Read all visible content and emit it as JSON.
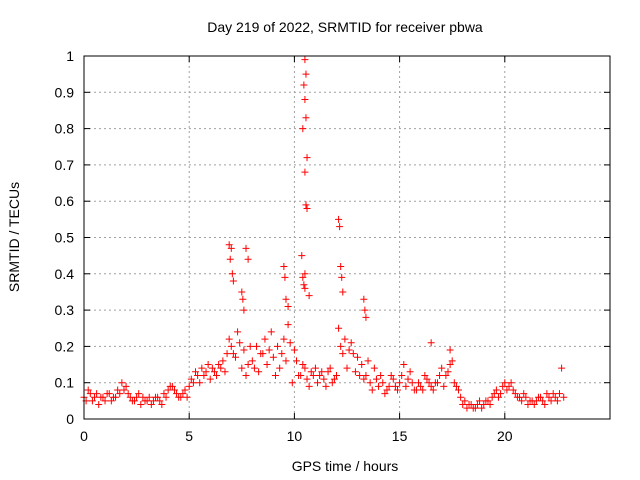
{
  "chart_data": {
    "type": "scatter",
    "title": "Day 219 of 2022, SRMTID for receiver pbwa",
    "xlabel": "GPS time / hours",
    "ylabel": "SRMTID / TECUs",
    "xlim": [
      0,
      25
    ],
    "ylim": [
      0,
      1
    ],
    "xticks": [
      0,
      5,
      10,
      15,
      20
    ],
    "xtick_labels": [
      "0",
      "5",
      "10",
      "15",
      "20"
    ],
    "yticks": [
      0,
      0.1,
      0.2,
      0.3,
      0.4,
      0.5,
      0.6,
      0.7,
      0.8,
      0.9,
      1
    ],
    "ytick_labels": [
      "0",
      "0.1",
      "0.2",
      "0.3",
      "0.4",
      "0.5",
      "0.6",
      "0.7",
      "0.8",
      "0.9",
      "1"
    ],
    "grid": true,
    "marker": "+",
    "marker_color": "#ff0000",
    "series": [
      {
        "name": "SRMTID",
        "x": [
          0.0,
          0.2,
          0.4,
          0.6,
          0.8,
          1.0,
          1.2,
          1.4,
          1.6,
          1.8,
          2.0,
          2.2,
          2.4,
          2.6,
          2.8,
          3.0,
          3.2,
          3.4,
          3.6,
          3.8,
          4.0,
          4.2,
          4.4,
          4.6,
          4.8,
          5.0,
          5.2,
          5.4,
          5.6,
          5.8,
          6.0,
          6.2,
          6.4,
          6.6,
          6.8,
          7.0,
          7.2,
          7.4,
          7.6,
          7.8,
          8.0,
          8.2,
          8.4,
          8.6,
          8.8,
          9.0,
          9.2,
          9.4,
          9.6,
          9.8,
          10.0,
          10.2,
          10.4,
          10.6,
          10.8,
          11.0,
          11.2,
          11.4,
          11.6,
          11.8,
          12.0,
          12.2,
          12.4,
          12.6,
          12.8,
          13.0,
          13.2,
          13.4,
          13.6,
          13.8,
          14.0,
          14.2,
          14.4,
          14.6,
          14.8,
          15.0,
          15.2,
          15.4,
          15.6,
          15.8,
          16.0,
          16.2,
          16.4,
          16.6,
          16.8,
          17.0,
          17.2,
          17.4,
          17.6,
          17.8,
          18.0,
          18.2,
          18.4,
          18.6,
          18.8,
          19.0,
          19.2,
          19.4,
          19.6,
          19.8,
          20.0,
          20.2,
          20.4,
          20.6,
          20.8,
          21.0,
          21.2,
          21.4,
          21.6,
          21.8,
          22.0,
          22.2,
          22.4,
          22.6,
          22.8,
          0.1,
          0.3,
          0.5,
          0.7,
          0.9,
          1.1,
          1.3,
          1.5,
          1.7,
          1.9,
          2.1,
          2.3,
          2.5,
          2.7,
          2.9,
          3.1,
          3.3,
          3.5,
          3.7,
          3.9,
          4.1,
          4.3,
          4.5,
          4.7,
          4.9,
          5.1,
          5.3,
          5.5,
          5.7,
          5.9,
          6.1,
          6.3,
          6.5,
          6.7,
          6.9,
          7.1,
          7.3,
          7.5,
          7.7,
          7.9,
          8.1,
          8.3,
          8.5,
          8.7,
          8.9,
          9.1,
          9.3,
          9.5,
          9.7,
          9.9,
          10.1,
          10.3,
          10.5,
          10.7,
          10.9,
          11.1,
          11.3,
          11.5,
          11.7,
          11.9,
          12.1,
          12.3,
          12.5,
          12.7,
          12.9,
          13.1,
          13.3,
          13.5,
          13.7,
          13.9,
          14.1,
          14.3,
          14.5,
          14.7,
          14.9,
          15.1,
          15.3,
          15.5,
          15.7,
          15.9,
          16.1,
          16.3,
          16.5,
          16.7,
          16.9,
          17.1,
          17.3,
          17.5,
          17.7,
          17.9,
          18.1,
          18.3,
          18.5,
          18.7,
          18.9,
          19.1,
          19.3,
          19.5,
          19.7,
          19.9,
          20.1,
          20.3,
          20.5,
          20.7,
          20.9,
          21.1,
          21.3,
          21.5,
          21.7,
          21.9,
          22.1,
          22.3,
          22.5,
          22.7,
          6.9,
          6.95,
          7.0,
          7.05,
          7.1,
          7.5,
          7.55,
          7.6,
          7.7,
          7.8,
          9.5,
          9.55,
          9.6,
          9.7,
          10.35,
          10.4,
          10.45,
          10.5,
          10.5,
          10.55,
          10.45,
          10.5,
          10.55,
          10.4,
          10.6,
          10.5,
          10.55,
          10.6,
          10.5,
          10.7,
          12.1,
          12.15,
          12.2,
          12.25,
          12.3,
          13.3,
          13.35,
          13.4,
          16.5,
          17.4
        ],
        "y": [
          0.06,
          0.08,
          0.05,
          0.07,
          0.06,
          0.05,
          0.07,
          0.06,
          0.08,
          0.1,
          0.09,
          0.06,
          0.05,
          0.07,
          0.06,
          0.05,
          0.04,
          0.06,
          0.05,
          0.07,
          0.08,
          0.09,
          0.07,
          0.06,
          0.08,
          0.09,
          0.1,
          0.12,
          0.14,
          0.13,
          0.11,
          0.13,
          0.15,
          0.16,
          0.18,
          0.2,
          0.17,
          0.21,
          0.19,
          0.15,
          0.16,
          0.2,
          0.18,
          0.22,
          0.19,
          0.17,
          0.2,
          0.18,
          0.16,
          0.21,
          0.19,
          0.12,
          0.15,
          0.11,
          0.13,
          0.14,
          0.12,
          0.11,
          0.13,
          0.1,
          0.12,
          0.2,
          0.22,
          0.19,
          0.18,
          0.17,
          0.15,
          0.12,
          0.1,
          0.14,
          0.09,
          0.1,
          0.08,
          0.12,
          0.09,
          0.1,
          0.15,
          0.11,
          0.1,
          0.08,
          0.09,
          0.12,
          0.1,
          0.08,
          0.1,
          0.14,
          0.12,
          0.15,
          0.1,
          0.08,
          0.04,
          0.03,
          0.04,
          0.03,
          0.05,
          0.04,
          0.05,
          0.06,
          0.08,
          0.07,
          0.1,
          0.09,
          0.08,
          0.06,
          0.05,
          0.06,
          0.05,
          0.04,
          0.06,
          0.05,
          0.07,
          0.05,
          0.06,
          0.07,
          0.06,
          0.05,
          0.07,
          0.06,
          0.04,
          0.06,
          0.07,
          0.05,
          0.06,
          0.07,
          0.08,
          0.07,
          0.05,
          0.06,
          0.04,
          0.05,
          0.06,
          0.05,
          0.06,
          0.04,
          0.06,
          0.09,
          0.08,
          0.06,
          0.07,
          0.06,
          0.11,
          0.13,
          0.1,
          0.12,
          0.15,
          0.14,
          0.12,
          0.14,
          0.13,
          0.22,
          0.18,
          0.24,
          0.14,
          0.12,
          0.2,
          0.14,
          0.13,
          0.18,
          0.15,
          0.24,
          0.12,
          0.14,
          0.22,
          0.26,
          0.1,
          0.16,
          0.12,
          0.14,
          0.09,
          0.12,
          0.1,
          0.13,
          0.09,
          0.14,
          0.11,
          0.25,
          0.18,
          0.14,
          0.21,
          0.13,
          0.12,
          0.11,
          0.16,
          0.08,
          0.11,
          0.12,
          0.07,
          0.09,
          0.11,
          0.08,
          0.12,
          0.09,
          0.13,
          0.08,
          0.1,
          0.08,
          0.11,
          0.09,
          0.1,
          0.12,
          0.09,
          0.13,
          0.16,
          0.09,
          0.06,
          0.05,
          0.04,
          0.03,
          0.04,
          0.03,
          0.05,
          0.04,
          0.07,
          0.06,
          0.09,
          0.08,
          0.1,
          0.07,
          0.06,
          0.07,
          0.04,
          0.05,
          0.05,
          0.06,
          0.04,
          0.06,
          0.07,
          0.05,
          0.14,
          0.48,
          0.44,
          0.47,
          0.4,
          0.38,
          0.35,
          0.33,
          0.3,
          0.47,
          0.44,
          0.42,
          0.39,
          0.33,
          0.31,
          0.45,
          0.39,
          0.37,
          0.36,
          0.99,
          0.95,
          0.92,
          0.88,
          0.83,
          0.8,
          0.72,
          0.68,
          0.59,
          0.58,
          0.4,
          0.34,
          0.55,
          0.53,
          0.42,
          0.39,
          0.35,
          0.33,
          0.3,
          0.28,
          0.21,
          0.19
        ]
      }
    ]
  }
}
